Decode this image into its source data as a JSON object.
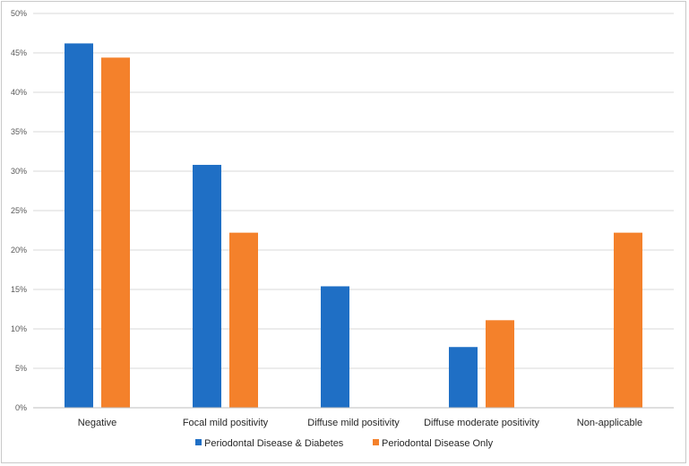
{
  "chart_data": {
    "type": "bar",
    "title": "",
    "xlabel": "",
    "ylabel": "",
    "ylim": [
      0,
      50
    ],
    "yticks": [
      "0%",
      "5%",
      "10%",
      "15%",
      "20%",
      "25%",
      "30%",
      "35%",
      "40%",
      "45%",
      "50%"
    ],
    "grid": true,
    "legend_position": "bottom",
    "categories": [
      "Negative",
      "Focal mild positivity",
      "Diffuse mild positivity",
      "Diffuse moderate positivity",
      "Non-applicable"
    ],
    "series": [
      {
        "name": "Periodontal Disease & Diabetes",
        "color": "#1f6fc5",
        "values": [
          46.2,
          30.8,
          15.4,
          7.7,
          0
        ]
      },
      {
        "name": "Periodontal Disease Only",
        "color": "#f4812b",
        "values": [
          44.4,
          22.2,
          0,
          11.1,
          22.2
        ]
      }
    ]
  }
}
